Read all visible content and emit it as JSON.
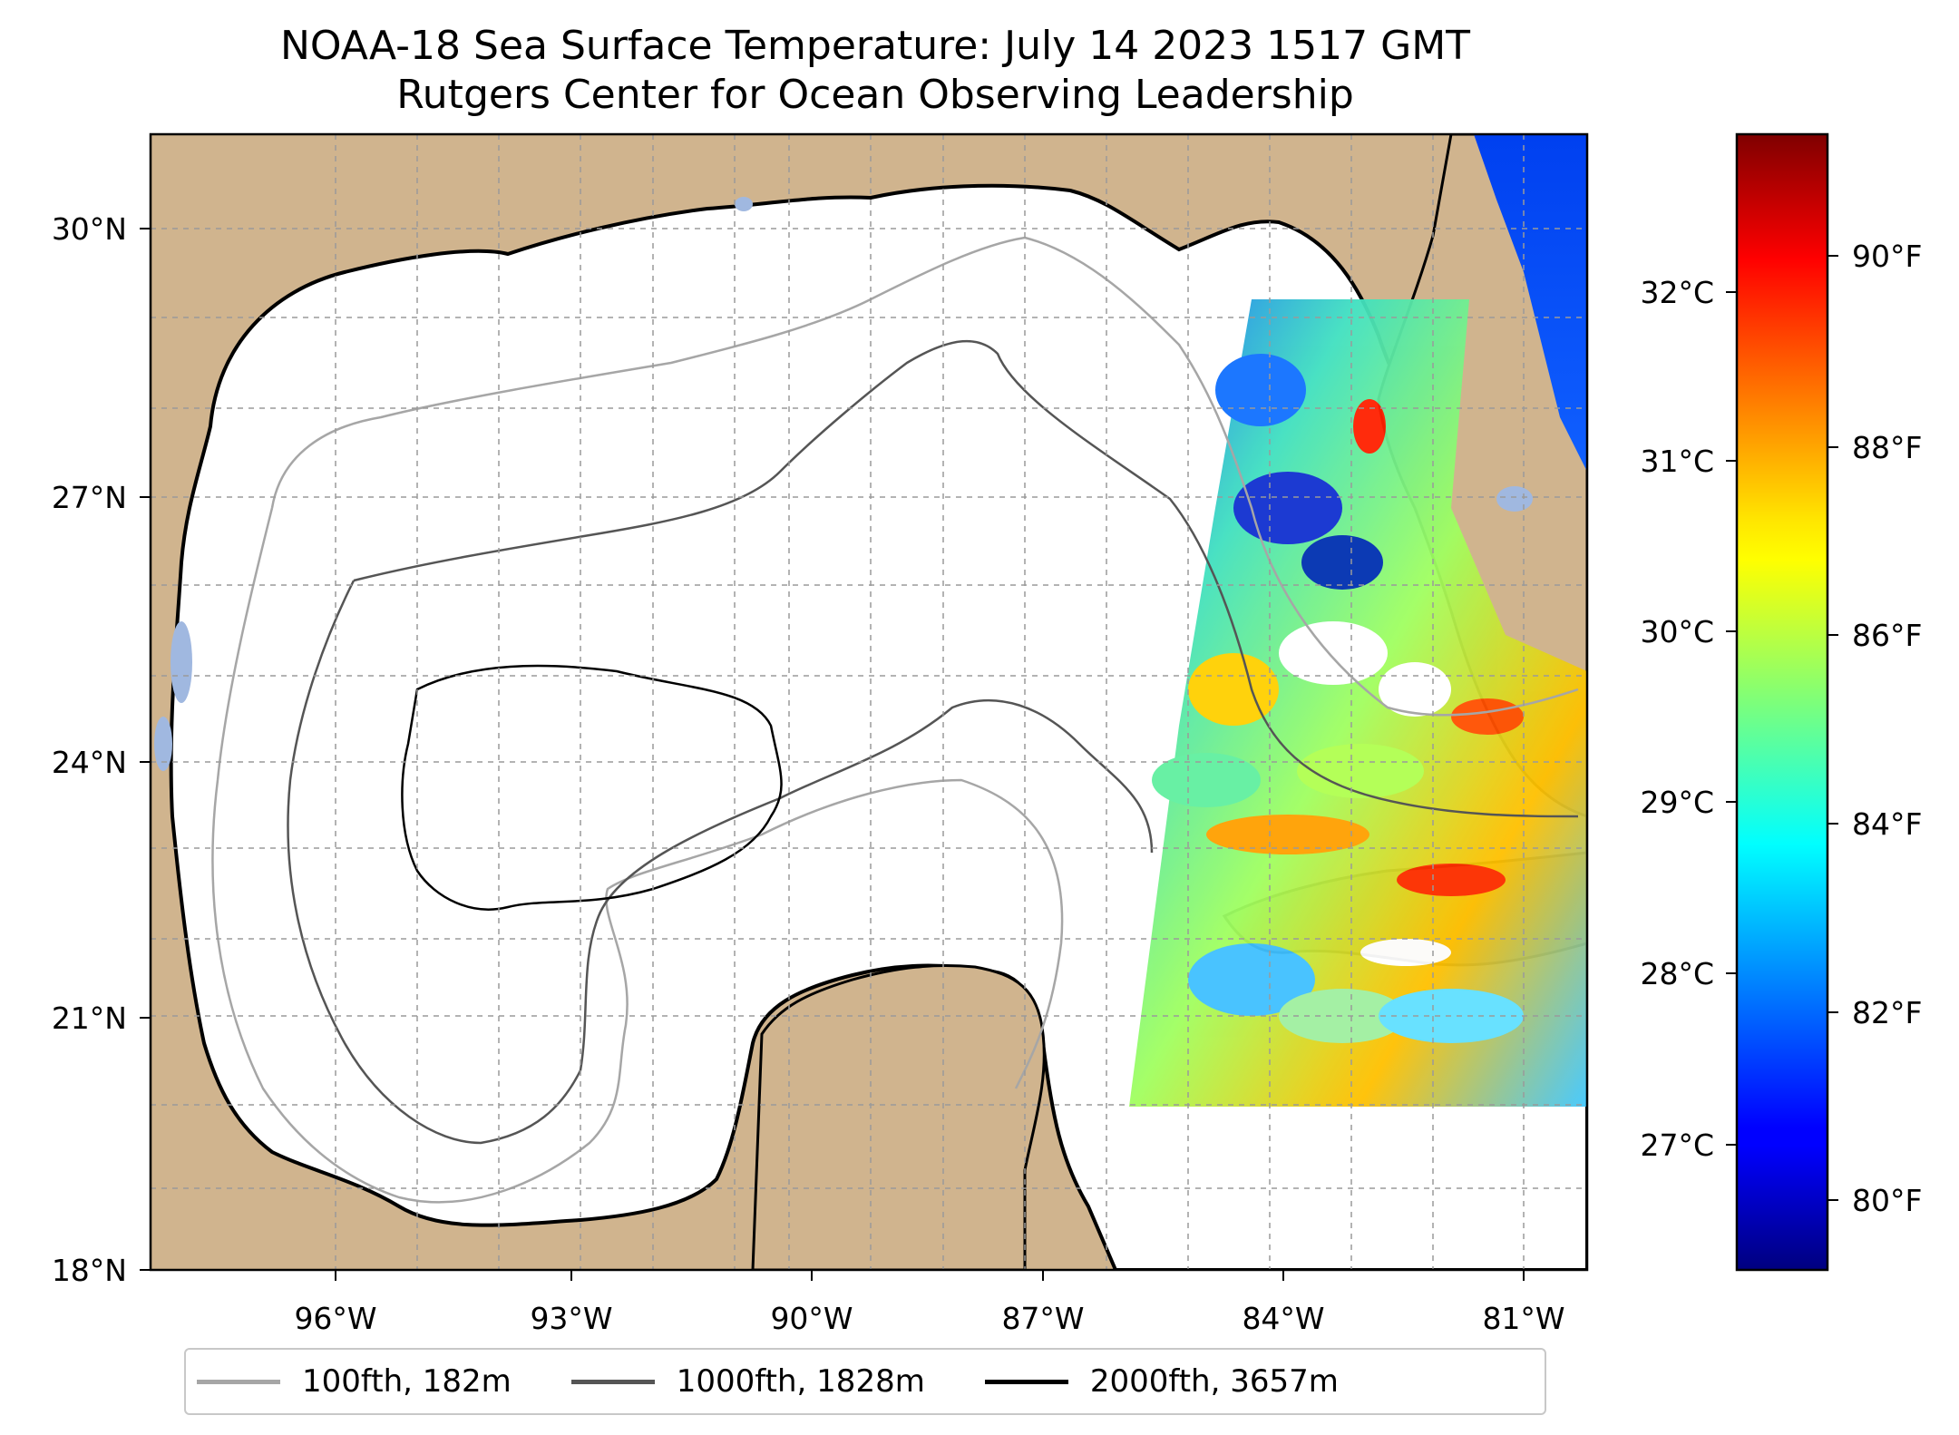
{
  "title": {
    "line1": "NOAA-18 Sea Surface Temperature: July 14 2023 1517 GMT",
    "line2": "Rutgers Center for Ocean Observing Leadership"
  },
  "map": {
    "lon_ticks": [
      "96°W",
      "93°W",
      "90°W",
      "87°W",
      "84°W",
      "81°W"
    ],
    "lat_ticks": [
      "18°N",
      "21°N",
      "24°N",
      "27°N",
      "30°N"
    ],
    "lon_range": [
      -98.3,
      -80.4
    ],
    "lat_range": [
      18.0,
      31.1
    ],
    "land_color": "#d0b48e",
    "water_color": "#ffffff",
    "lake_color": "#a0b8e0",
    "gridlines": true
  },
  "colorbar": {
    "celsius_ticks": [
      "27°C",
      "28°C",
      "29°C",
      "30°C",
      "31°C",
      "32°C"
    ],
    "fahrenheit_ticks": [
      "80°F",
      "82°F",
      "84°F",
      "86°F",
      "88°F",
      "90°F"
    ],
    "colormap": "jet",
    "range_f": [
      79.2,
      91.6
    ]
  },
  "legend": {
    "items": [
      {
        "label": "100fth, 182m",
        "color": "#a6a6a6"
      },
      {
        "label": "1000fth, 1828m",
        "color": "#555555"
      },
      {
        "label": "2000fth, 3657m",
        "color": "#000000"
      }
    ]
  }
}
